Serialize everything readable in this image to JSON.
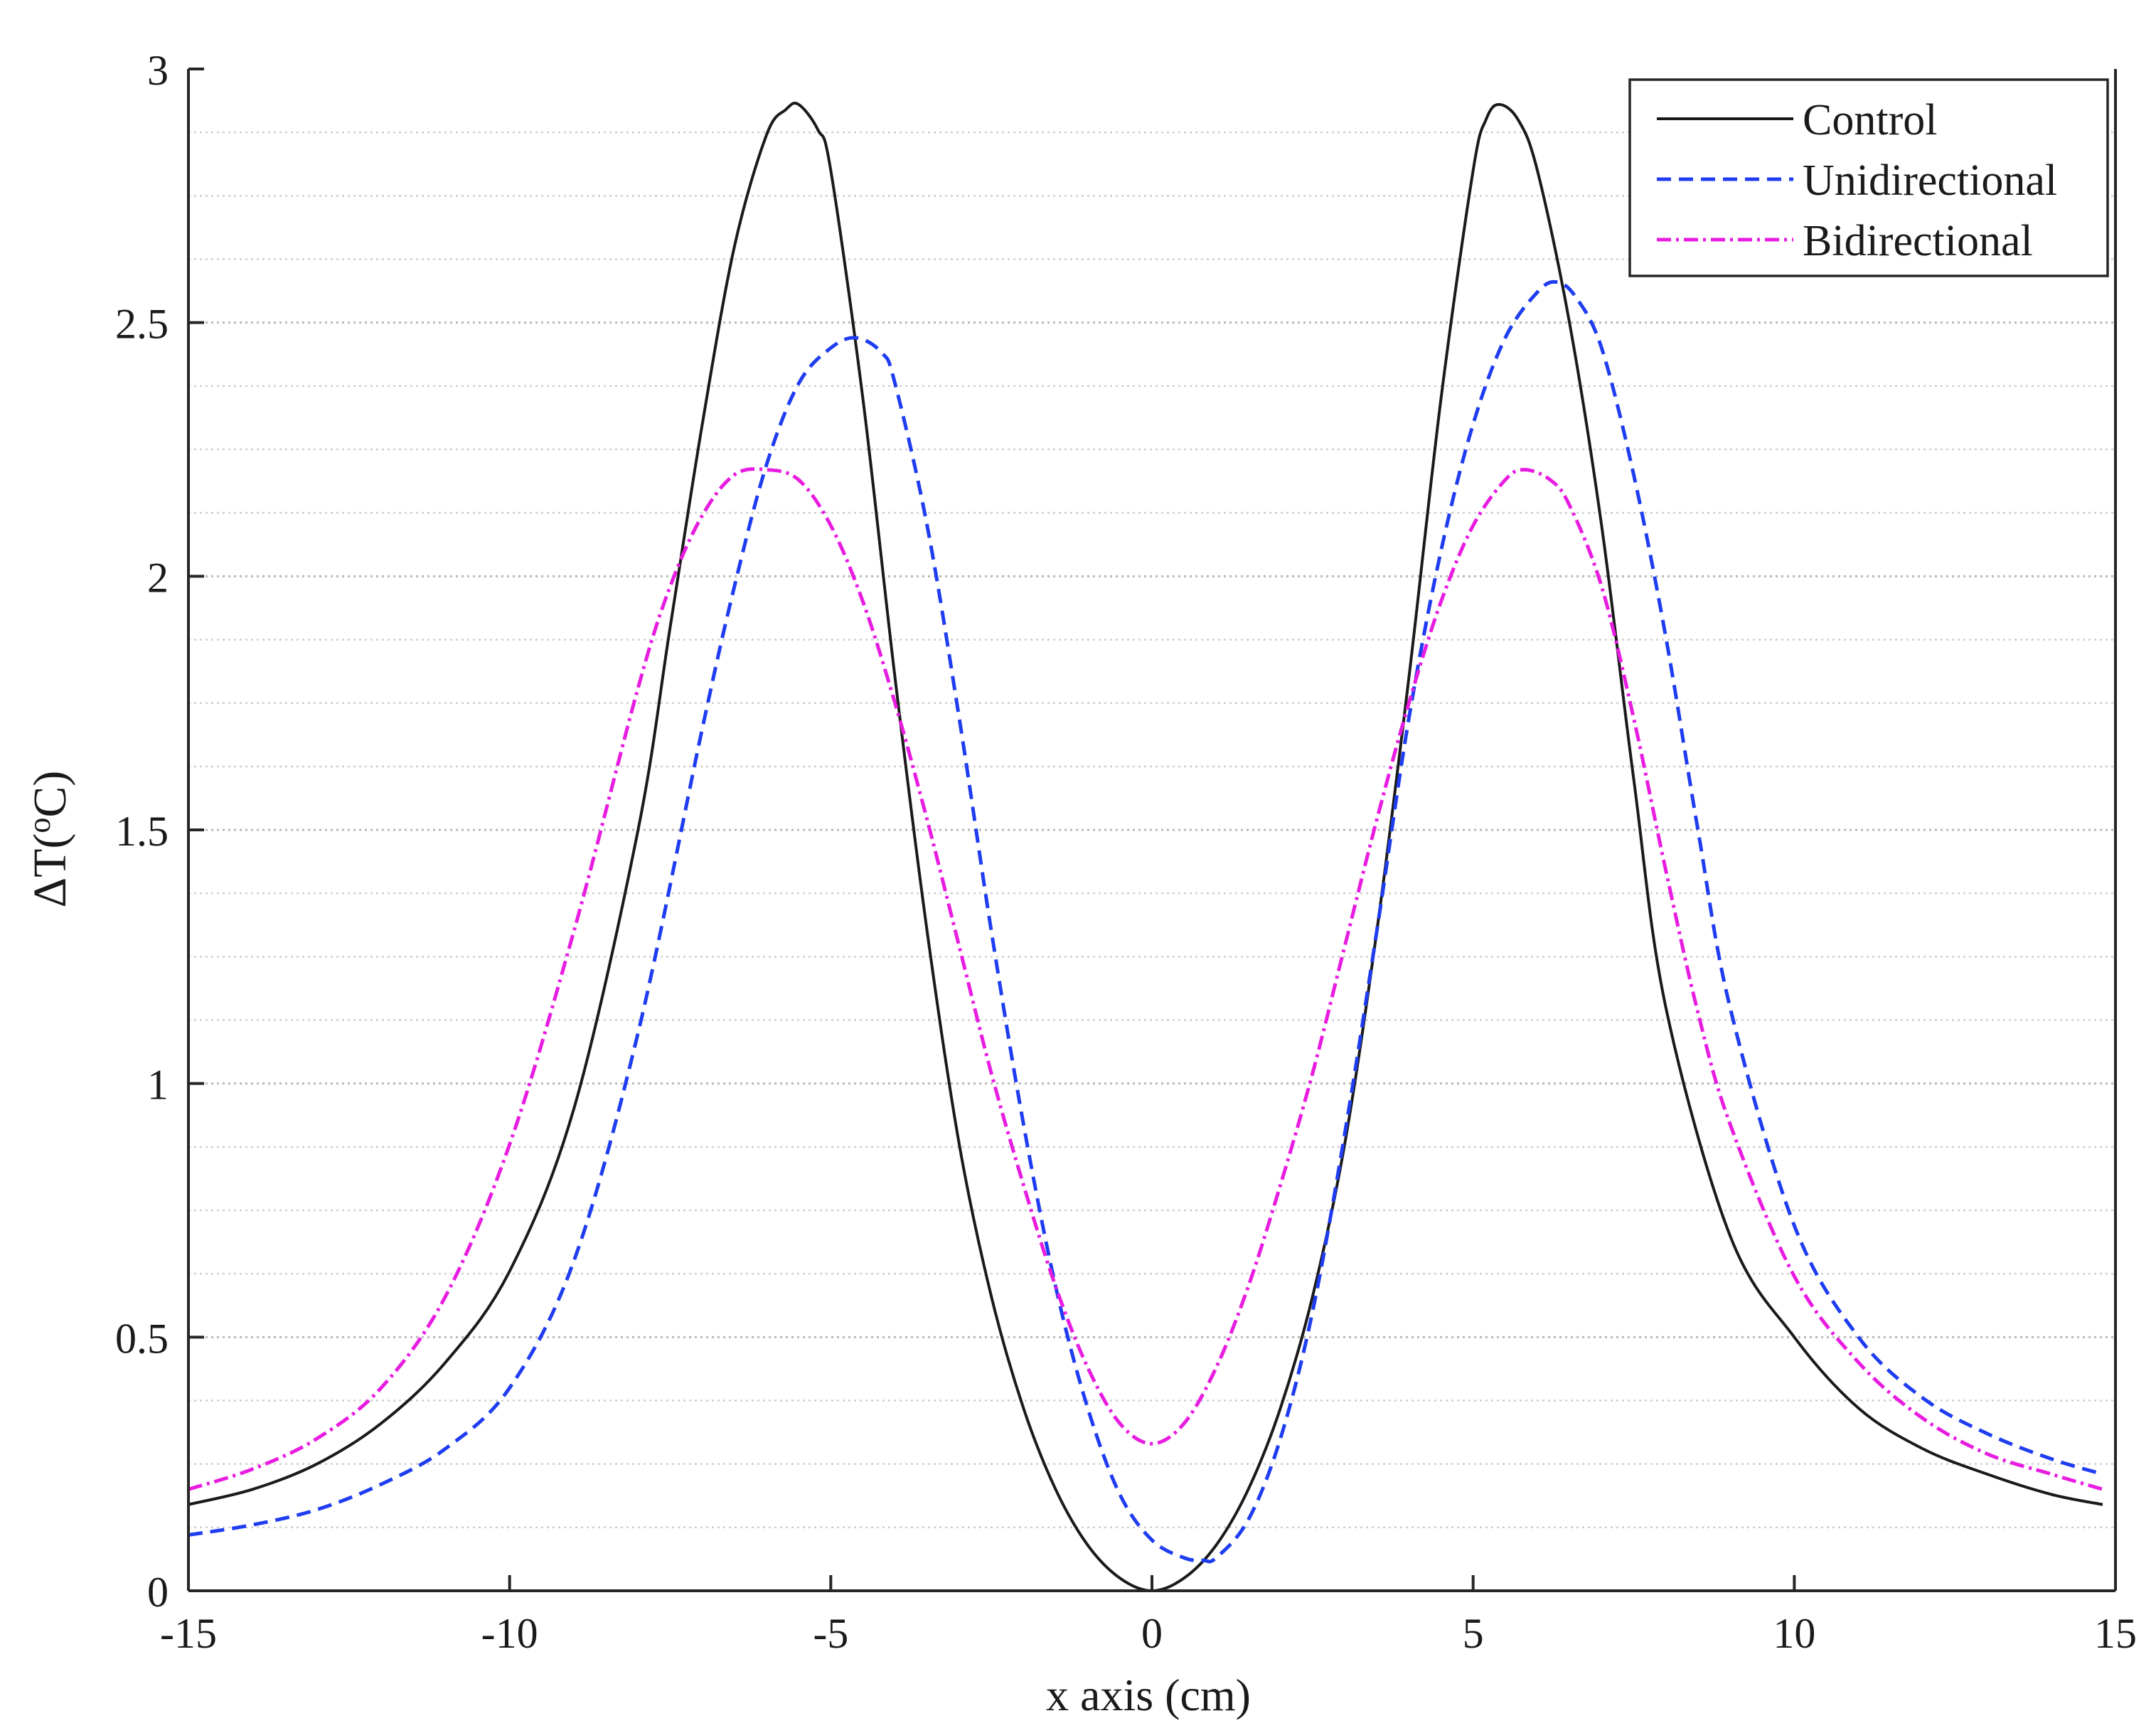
{
  "chart_data": {
    "type": "line",
    "title": "",
    "xlabel": "x axis (cm)",
    "ylabel": "ΔT(",
    "ylabel_unit": "C)",
    "ylabel_degree": "o",
    "xlim": [
      -15,
      15
    ],
    "ylim": [
      0,
      3
    ],
    "xticks": [
      -15,
      -10,
      -5,
      0,
      5,
      10,
      15
    ],
    "xtick_labels": [
      "-15",
      "-10",
      "-5",
      "0",
      "5",
      "10",
      "15"
    ],
    "yticks": [
      0,
      0.5,
      1,
      1.5,
      2,
      2.5,
      3
    ],
    "ytick_labels": [
      "0",
      "0.5",
      "1",
      "1.5",
      "2",
      "2.5",
      "3"
    ],
    "minor_gridline_step": 0.125,
    "grid": "horizontal-dotted",
    "legend_position": "top-right",
    "series": [
      {
        "name": "Control",
        "color": "#1a1a1a",
        "style": "solid",
        "x": [
          -15,
          -14,
          -13,
          -12,
          -11,
          -10,
          -9,
          -8,
          -7.5,
          -7,
          -6.5,
          -6,
          -5.7,
          -5.5,
          -5.2,
          -5,
          -4.5,
          -4,
          -3.5,
          -3,
          -2.5,
          -2,
          -1.5,
          -1,
          -0.5,
          0,
          0.5,
          1,
          1.5,
          2,
          2.5,
          3,
          3.5,
          4,
          4.5,
          5,
          5.2,
          5.4,
          5.7,
          6,
          6.5,
          7,
          7.5,
          8,
          9,
          10,
          11,
          12,
          13,
          14,
          14.8
        ],
        "y": [
          0.17,
          0.2,
          0.25,
          0.33,
          0.45,
          0.63,
          0.95,
          1.5,
          1.9,
          2.3,
          2.65,
          2.87,
          2.92,
          2.93,
          2.88,
          2.8,
          2.35,
          1.8,
          1.3,
          0.88,
          0.58,
          0.36,
          0.2,
          0.09,
          0.025,
          0,
          0.025,
          0.09,
          0.2,
          0.36,
          0.58,
          0.88,
          1.3,
          1.8,
          2.35,
          2.8,
          2.9,
          2.93,
          2.9,
          2.8,
          2.5,
          2.1,
          1.6,
          1.15,
          0.7,
          0.5,
          0.36,
          0.28,
          0.23,
          0.19,
          0.17
        ]
      },
      {
        "name": "Unidirectional",
        "color": "#1f3df0",
        "style": "dashed",
        "x": [
          -15,
          -14,
          -13,
          -12,
          -11,
          -10,
          -9,
          -8,
          -7,
          -6.5,
          -6,
          -5.5,
          -5,
          -4.6,
          -4.2,
          -4,
          -3.5,
          -3,
          -2.5,
          -2,
          -1.5,
          -1,
          -0.5,
          0,
          0.5,
          0.8,
          1,
          1.5,
          2,
          2.5,
          3,
          3.5,
          4,
          4.5,
          5,
          5.5,
          6,
          6.3,
          6.6,
          7,
          7.5,
          8,
          8.5,
          9,
          10,
          11,
          12,
          13,
          14,
          14.8
        ],
        "y": [
          0.11,
          0.13,
          0.16,
          0.21,
          0.28,
          0.4,
          0.65,
          1.1,
          1.7,
          1.98,
          2.22,
          2.38,
          2.45,
          2.47,
          2.44,
          2.38,
          2.1,
          1.72,
          1.3,
          0.92,
          0.6,
          0.36,
          0.19,
          0.1,
          0.065,
          0.06,
          0.065,
          0.14,
          0.3,
          0.55,
          0.9,
          1.3,
          1.72,
          2.05,
          2.3,
          2.47,
          2.56,
          2.58,
          2.55,
          2.45,
          2.2,
          1.88,
          1.5,
          1.15,
          0.72,
          0.5,
          0.38,
          0.31,
          0.26,
          0.23
        ]
      },
      {
        "name": "Bidirectional",
        "color": "#e81ce0",
        "style": "dash-dot",
        "x": [
          -15,
          -14,
          -13,
          -12,
          -11,
          -10,
          -9,
          -8,
          -7.5,
          -7,
          -6.5,
          -6,
          -5.5,
          -5,
          -4.5,
          -4,
          -3.5,
          -3,
          -2.5,
          -2,
          -1.5,
          -1,
          -0.5,
          0,
          0.5,
          1,
          1.5,
          2,
          2.5,
          3,
          3.5,
          4,
          4.5,
          5,
          5.5,
          5.8,
          6.2,
          6.5,
          7,
          7.5,
          8,
          8.5,
          9,
          10,
          11,
          12,
          13,
          14,
          14.8
        ],
        "y": [
          0.2,
          0.24,
          0.3,
          0.4,
          0.58,
          0.88,
          1.3,
          1.78,
          1.98,
          2.12,
          2.2,
          2.21,
          2.19,
          2.1,
          1.95,
          1.75,
          1.52,
          1.27,
          1.02,
          0.8,
          0.6,
          0.44,
          0.33,
          0.29,
          0.33,
          0.44,
          0.6,
          0.8,
          1.02,
          1.27,
          1.52,
          1.75,
          1.95,
          2.1,
          2.19,
          2.21,
          2.19,
          2.14,
          1.98,
          1.72,
          1.42,
          1.14,
          0.92,
          0.62,
          0.45,
          0.34,
          0.27,
          0.23,
          0.2
        ]
      }
    ]
  }
}
